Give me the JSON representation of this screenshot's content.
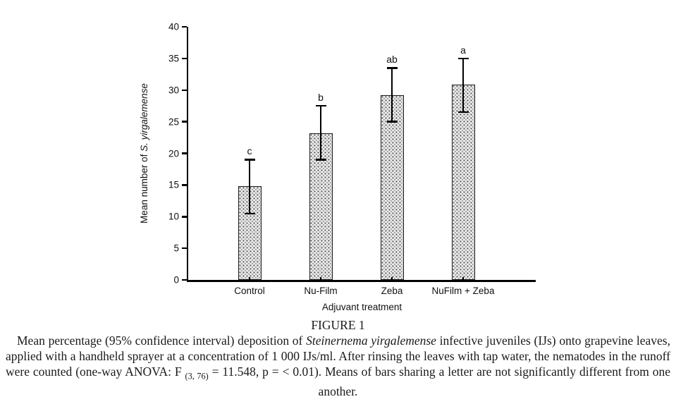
{
  "figure": {
    "caption_title": "FIGURE 1",
    "caption_segments": [
      {
        "t": "Mean percentage (95% confidence interval) deposition of "
      },
      {
        "t": "Steinernema yirgalemense",
        "i": true
      },
      {
        "t": " infective juveniles (IJs) onto grapevine leaves, applied with a handheld sprayer at a concentration of 1 000 IJs/ml. After rinsing the leaves with tap water, the nematodes in the runoff were counted (one-way ANOVA: F "
      },
      {
        "t": "(3, 76)",
        "sub": true
      },
      {
        "t": " = 11.548, p = < 0.01). Means of bars sharing a letter are not significantly different from one another."
      }
    ]
  },
  "chart_data": {
    "type": "bar",
    "title": "",
    "categories": [
      "Control",
      "Nu-Film",
      "Zeba",
      "NuFilm + Zeba"
    ],
    "values": [
      14.8,
      23.2,
      29.2,
      30.9
    ],
    "error_low": [
      10.5,
      19.0,
      25.0,
      26.5
    ],
    "error_high": [
      19.0,
      27.5,
      33.5,
      35.0
    ],
    "significance_letters": [
      "c",
      "b",
      "ab",
      "a"
    ],
    "xlabel": "Adjuvant treatment",
    "ylabel_segments": [
      {
        "t": "Mean number of "
      },
      {
        "t": "S. yirgalemense",
        "i": true
      }
    ],
    "ylim": [
      0,
      40
    ],
    "yticks": [
      0,
      5,
      10,
      15,
      20,
      25,
      30,
      35,
      40
    ],
    "grid": false,
    "legend": null,
    "bar_fill_color": "#e9e9e9",
    "bar_pattern": "stipple-dots",
    "bar_border_color": "#1a1a1a",
    "axis_color": "#000000"
  }
}
